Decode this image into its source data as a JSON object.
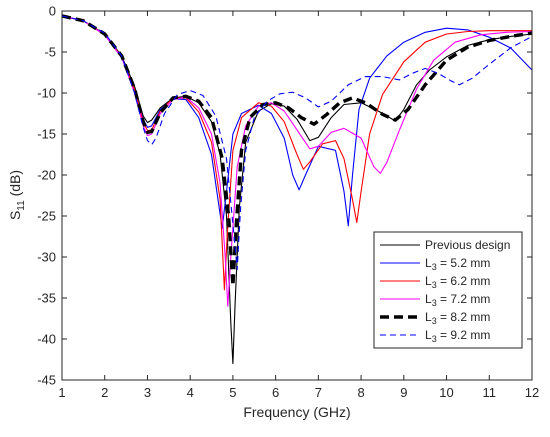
{
  "chart_data": {
    "type": "line",
    "title": "",
    "xlabel": "Frequency (GHz)",
    "ylabel": {
      "base": "S",
      "sub": "11",
      "suffix": " (dB)"
    },
    "xlim": [
      1,
      12
    ],
    "ylim": [
      -45,
      0
    ],
    "xticks": [
      1,
      2,
      3,
      4,
      5,
      6,
      7,
      8,
      9,
      10,
      11,
      12
    ],
    "yticks": [
      0,
      -5,
      -10,
      -15,
      -20,
      -25,
      -30,
      -35,
      -40,
      -45
    ],
    "grid": false,
    "legend_position": "bottom-right",
    "series": [
      {
        "name": "Previous design",
        "name_parts": [
          "Previous design",
          "",
          ""
        ],
        "color": "#000000",
        "dash": "solid",
        "weight": "thin",
        "points": [
          [
            1,
            -0.6
          ],
          [
            1.5,
            -1.2
          ],
          [
            2,
            -2.8
          ],
          [
            2.4,
            -5.5
          ],
          [
            2.7,
            -9.2
          ],
          [
            2.9,
            -12.8
          ],
          [
            3.0,
            -13.6
          ],
          [
            3.1,
            -13.3
          ],
          [
            3.3,
            -11.8
          ],
          [
            3.6,
            -10.6
          ],
          [
            3.9,
            -10.4
          ],
          [
            4.2,
            -11.2
          ],
          [
            4.5,
            -13.5
          ],
          [
            4.7,
            -17.5
          ],
          [
            4.85,
            -25
          ],
          [
            4.95,
            -38
          ],
          [
            5.0,
            -43
          ],
          [
            5.05,
            -36
          ],
          [
            5.15,
            -24
          ],
          [
            5.3,
            -16
          ],
          [
            5.6,
            -12.2
          ],
          [
            5.9,
            -11.3
          ],
          [
            6.2,
            -11.6
          ],
          [
            6.5,
            -13.2
          ],
          [
            6.8,
            -15.8
          ],
          [
            7.0,
            -15.4
          ],
          [
            7.3,
            -13
          ],
          [
            7.6,
            -11.4
          ],
          [
            8.0,
            -11.2
          ],
          [
            8.4,
            -12.2
          ],
          [
            8.8,
            -13.4
          ],
          [
            9.0,
            -12
          ],
          [
            9.3,
            -9
          ],
          [
            9.6,
            -7.2
          ],
          [
            10,
            -5.6
          ],
          [
            10.5,
            -4.2
          ],
          [
            11,
            -3.5
          ],
          [
            11.5,
            -3.1
          ],
          [
            12,
            -2.8
          ]
        ]
      },
      {
        "name": "L3 = 5.2 mm",
        "name_parts": [
          "L",
          "3",
          " = 5.2 mm"
        ],
        "color": "#0000ff",
        "dash": "solid",
        "weight": "thin",
        "points": [
          [
            1,
            -0.6
          ],
          [
            1.5,
            -1.2
          ],
          [
            2,
            -2.9
          ],
          [
            2.4,
            -5.7
          ],
          [
            2.7,
            -9.8
          ],
          [
            2.9,
            -13.2
          ],
          [
            3.0,
            -14.2
          ],
          [
            3.1,
            -14
          ],
          [
            3.3,
            -12
          ],
          [
            3.6,
            -10.7
          ],
          [
            3.9,
            -10.8
          ],
          [
            4.2,
            -13
          ],
          [
            4.5,
            -17.5
          ],
          [
            4.65,
            -23
          ],
          [
            4.75,
            -26.5
          ],
          [
            4.85,
            -22
          ],
          [
            5.0,
            -15
          ],
          [
            5.2,
            -12.5
          ],
          [
            5.6,
            -11.5
          ],
          [
            5.9,
            -12.5
          ],
          [
            6.2,
            -15.5
          ],
          [
            6.4,
            -20
          ],
          [
            6.55,
            -21.8
          ],
          [
            6.7,
            -20
          ],
          [
            7.0,
            -16.5
          ],
          [
            7.4,
            -17
          ],
          [
            7.6,
            -22
          ],
          [
            7.7,
            -26.2
          ],
          [
            7.8,
            -20
          ],
          [
            7.95,
            -12
          ],
          [
            8.2,
            -8.2
          ],
          [
            8.6,
            -5.5
          ],
          [
            9,
            -3.8
          ],
          [
            9.5,
            -2.6
          ],
          [
            10,
            -2.1
          ],
          [
            10.5,
            -2.3
          ],
          [
            11,
            -3.2
          ],
          [
            11.5,
            -4.5
          ],
          [
            12,
            -7.2
          ]
        ]
      },
      {
        "name": "L3 = 6.2 mm",
        "name_parts": [
          "L",
          "3",
          " = 6.2 mm"
        ],
        "color": "#ff0000",
        "dash": "solid",
        "weight": "thin",
        "points": [
          [
            1,
            -0.6
          ],
          [
            1.5,
            -1.2
          ],
          [
            2,
            -2.9
          ],
          [
            2.4,
            -5.6
          ],
          [
            2.7,
            -9.6
          ],
          [
            2.9,
            -13.5
          ],
          [
            3.0,
            -14.6
          ],
          [
            3.1,
            -14.5
          ],
          [
            3.3,
            -12.2
          ],
          [
            3.6,
            -10.6
          ],
          [
            3.9,
            -10.6
          ],
          [
            4.2,
            -12.3
          ],
          [
            4.5,
            -16
          ],
          [
            4.7,
            -23
          ],
          [
            4.8,
            -34
          ],
          [
            4.87,
            -27
          ],
          [
            5.0,
            -17
          ],
          [
            5.2,
            -13
          ],
          [
            5.6,
            -11.2
          ],
          [
            5.9,
            -11.6
          ],
          [
            6.2,
            -13.5
          ],
          [
            6.5,
            -17.5
          ],
          [
            6.65,
            -19.3
          ],
          [
            6.8,
            -18.4
          ],
          [
            7.1,
            -16.2
          ],
          [
            7.4,
            -15.8
          ],
          [
            7.6,
            -18
          ],
          [
            7.8,
            -23
          ],
          [
            7.9,
            -25.8
          ],
          [
            8.0,
            -22
          ],
          [
            8.2,
            -15
          ],
          [
            8.5,
            -10.2
          ],
          [
            9,
            -6.2
          ],
          [
            9.5,
            -3.8
          ],
          [
            10,
            -2.8
          ],
          [
            10.5,
            -2.5
          ],
          [
            11,
            -2.4
          ],
          [
            11.5,
            -2.4
          ],
          [
            12,
            -2.4
          ]
        ]
      },
      {
        "name": "L3 = 7.2 mm",
        "name_parts": [
          "L",
          "3",
          " = 7.2 mm"
        ],
        "color": "#ff00ff",
        "dash": "solid",
        "weight": "thin",
        "points": [
          [
            1,
            -0.6
          ],
          [
            1.5,
            -1.2
          ],
          [
            2,
            -2.9
          ],
          [
            2.4,
            -5.7
          ],
          [
            2.7,
            -10
          ],
          [
            2.9,
            -14
          ],
          [
            3.0,
            -15.2
          ],
          [
            3.1,
            -15
          ],
          [
            3.3,
            -12.5
          ],
          [
            3.6,
            -10.8
          ],
          [
            3.9,
            -10.5
          ],
          [
            4.2,
            -11.8
          ],
          [
            4.5,
            -15
          ],
          [
            4.7,
            -21
          ],
          [
            4.82,
            -30
          ],
          [
            4.88,
            -36
          ],
          [
            4.95,
            -30
          ],
          [
            5.1,
            -19
          ],
          [
            5.3,
            -14
          ],
          [
            5.6,
            -11.6
          ],
          [
            5.9,
            -11.2
          ],
          [
            6.2,
            -12.2
          ],
          [
            6.5,
            -14.5
          ],
          [
            6.8,
            -16.8
          ],
          [
            7.0,
            -16.5
          ],
          [
            7.3,
            -14.8
          ],
          [
            7.6,
            -14.3
          ],
          [
            8.0,
            -15.5
          ],
          [
            8.3,
            -19
          ],
          [
            8.45,
            -19.8
          ],
          [
            8.6,
            -18.5
          ],
          [
            8.9,
            -14.5
          ],
          [
            9.3,
            -9.5
          ],
          [
            9.7,
            -6
          ],
          [
            10.2,
            -3.8
          ],
          [
            10.8,
            -2.9
          ],
          [
            11.4,
            -2.6
          ],
          [
            12,
            -2.5
          ]
        ]
      },
      {
        "name": "L3 = 8.2 mm",
        "name_parts": [
          "L",
          "3",
          " = 8.2 mm"
        ],
        "color": "#000000",
        "dash": "thick-dash",
        "weight": "thick",
        "points": [
          [
            1,
            -0.6
          ],
          [
            1.5,
            -1.2
          ],
          [
            2,
            -2.8
          ],
          [
            2.4,
            -5.5
          ],
          [
            2.7,
            -9.5
          ],
          [
            2.9,
            -13.5
          ],
          [
            3.0,
            -14.8
          ],
          [
            3.1,
            -14.7
          ],
          [
            3.3,
            -12.4
          ],
          [
            3.6,
            -10.6
          ],
          [
            3.9,
            -10.4
          ],
          [
            4.2,
            -11
          ],
          [
            4.5,
            -13
          ],
          [
            4.75,
            -18
          ],
          [
            4.9,
            -25
          ],
          [
            5.0,
            -33.5
          ],
          [
            5.08,
            -26
          ],
          [
            5.2,
            -17
          ],
          [
            5.4,
            -13
          ],
          [
            5.7,
            -11.4
          ],
          [
            6.0,
            -11.2
          ],
          [
            6.3,
            -11.8
          ],
          [
            6.6,
            -13
          ],
          [
            6.9,
            -13.8
          ],
          [
            7.2,
            -12.6
          ],
          [
            7.5,
            -11.2
          ],
          [
            7.8,
            -10.6
          ],
          [
            8.1,
            -11.2
          ],
          [
            8.5,
            -12.6
          ],
          [
            8.8,
            -13.3
          ],
          [
            9.1,
            -12
          ],
          [
            9.5,
            -9
          ],
          [
            10,
            -6
          ],
          [
            10.5,
            -4.4
          ],
          [
            11,
            -3.6
          ],
          [
            11.5,
            -3.1
          ],
          [
            12,
            -2.7
          ]
        ]
      },
      {
        "name": "L3 = 9.2 mm",
        "name_parts": [
          "L",
          "3",
          " = 9.2 mm"
        ],
        "color": "#0000ff",
        "dash": "dash",
        "weight": "thin",
        "points": [
          [
            1,
            -0.6
          ],
          [
            1.5,
            -1.2
          ],
          [
            2,
            -2.7
          ],
          [
            2.4,
            -5.5
          ],
          [
            2.7,
            -10
          ],
          [
            2.9,
            -14.2
          ],
          [
            3.0,
            -15.8
          ],
          [
            3.1,
            -16.3
          ],
          [
            3.2,
            -15.5
          ],
          [
            3.4,
            -12.5
          ],
          [
            3.7,
            -10.2
          ],
          [
            4.0,
            -9.7
          ],
          [
            4.3,
            -10.3
          ],
          [
            4.6,
            -12.8
          ],
          [
            4.85,
            -18
          ],
          [
            5.0,
            -26
          ],
          [
            5.1,
            -31.5
          ],
          [
            5.18,
            -24
          ],
          [
            5.3,
            -17
          ],
          [
            5.5,
            -13
          ],
          [
            5.8,
            -11
          ],
          [
            6.1,
            -10.1
          ],
          [
            6.4,
            -9.9
          ],
          [
            6.7,
            -10.6
          ],
          [
            7.0,
            -11.7
          ],
          [
            7.3,
            -11
          ],
          [
            7.7,
            -9
          ],
          [
            8.1,
            -8
          ],
          [
            8.5,
            -8
          ],
          [
            8.9,
            -8.4
          ],
          [
            9.2,
            -7.6
          ],
          [
            9.5,
            -7
          ],
          [
            9.8,
            -7.6
          ],
          [
            10.1,
            -8.5
          ],
          [
            10.3,
            -9
          ],
          [
            10.6,
            -8.2
          ],
          [
            11,
            -6.5
          ],
          [
            11.5,
            -4.5
          ],
          [
            12,
            -3.1
          ]
        ]
      }
    ]
  }
}
